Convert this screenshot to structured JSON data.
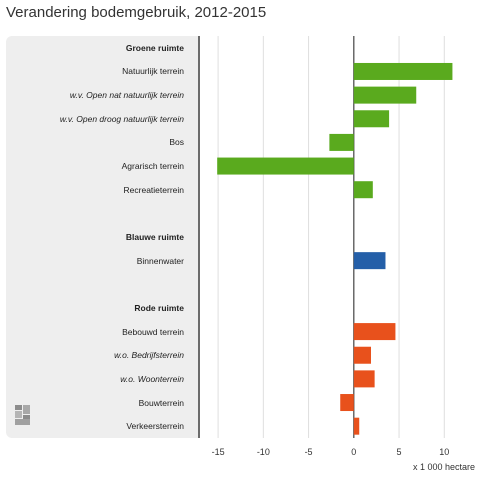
{
  "title": "Verandering bodemgebruik, 2012-2015",
  "colors": {
    "groen": "#5aaa1e",
    "blauw": "#245fa8",
    "rood": "#e8511c"
  },
  "chart_data": {
    "type": "bar",
    "orientation": "horizontal",
    "title": "Verandering bodemgebruik, 2012-2015",
    "xlabel": "x 1 000 hectare",
    "xlim": [
      -17,
      14.5
    ],
    "xticks": [
      -15,
      -10,
      -5,
      0,
      5,
      10
    ],
    "grid": true,
    "rows": [
      {
        "label": "Groene ruimte",
        "kind": "header"
      },
      {
        "label": "Natuurlijk terrein",
        "value": 10.9,
        "group": "groen"
      },
      {
        "label": "w.v. Open nat natuurlijk terrein",
        "value": 6.9,
        "group": "groen",
        "italic": true
      },
      {
        "label": "w.v. Open droog natuurlijk terrein",
        "value": 3.9,
        "group": "groen",
        "italic": true
      },
      {
        "label": "Bos",
        "value": -2.7,
        "group": "groen"
      },
      {
        "label": "Agrarisch terrein",
        "value": -15.1,
        "group": "groen"
      },
      {
        "label": "Recreatieterrein",
        "value": 2.1,
        "group": "groen"
      },
      {
        "label": "",
        "kind": "spacer"
      },
      {
        "label": "Blauwe ruimte",
        "kind": "header"
      },
      {
        "label": "Binnenwater",
        "value": 3.5,
        "group": "blauw"
      },
      {
        "label": "",
        "kind": "spacer"
      },
      {
        "label": "Rode ruimte",
        "kind": "header"
      },
      {
        "label": "Bebouwd terrein",
        "value": 4.6,
        "group": "rood"
      },
      {
        "label": "w.o. Bedrijfsterrein",
        "value": 1.9,
        "group": "rood",
        "italic": true
      },
      {
        "label": "w.o. Woonterrein",
        "value": 2.3,
        "group": "rood",
        "italic": true
      },
      {
        "label": "Bouwterrein",
        "value": -1.5,
        "group": "rood"
      },
      {
        "label": "Verkeersterrein",
        "value": 0.6,
        "group": "rood"
      }
    ]
  }
}
